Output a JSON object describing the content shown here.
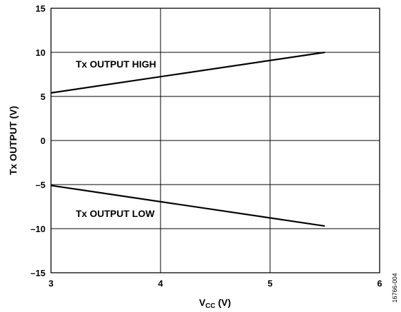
{
  "chart_data": {
    "type": "line",
    "xlabel": "V",
    "xlabel_sub": "CC",
    "xlabel_unit": " (V)",
    "ylabel": "Tx OUTPUT (V)",
    "xlim": [
      3,
      6
    ],
    "ylim": [
      -15,
      15
    ],
    "x_ticks": [
      "3",
      "4",
      "5",
      "6"
    ],
    "y_ticks": [
      "15",
      "10",
      "5",
      "0",
      "–5",
      "–10",
      "–15"
    ],
    "grid": true,
    "series": [
      {
        "name": "Tx OUTPUT HIGH",
        "x": [
          3.0,
          5.5
        ],
        "y": [
          5.4,
          10.0
        ]
      },
      {
        "name": "Tx OUTPUT LOW",
        "x": [
          3.0,
          5.5
        ],
        "y": [
          -5.1,
          -9.7
        ]
      }
    ],
    "annotations": [
      "Tx OUTPUT HIGH",
      "Tx OUTPUT LOW"
    ],
    "figure_code": "16766-004"
  }
}
